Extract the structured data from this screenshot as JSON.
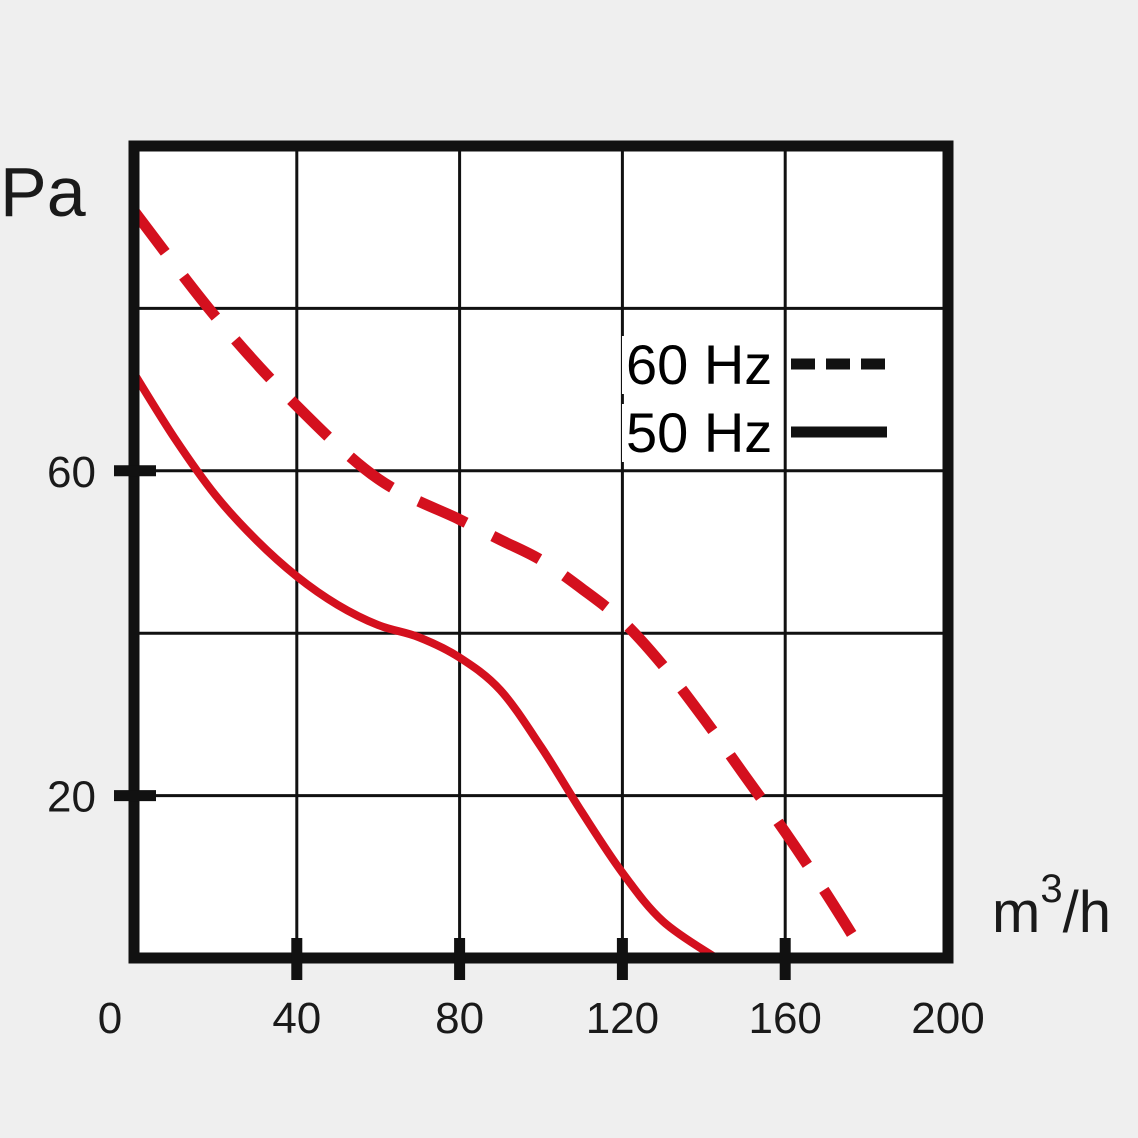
{
  "chart_data": {
    "type": "line",
    "ylabel": "Pa",
    "xlabel_base": "m",
    "xlabel_sup": "3",
    "xlabel_tail": "/h",
    "xlim": [
      0,
      200
    ],
    "ylim": [
      0,
      100
    ],
    "x_ticks": [
      "0",
      "40",
      "80",
      "120",
      "160",
      "200"
    ],
    "x_tick_values": [
      0,
      40,
      80,
      120,
      160,
      200
    ],
    "y_ticks": [
      "60",
      "20"
    ],
    "y_tick_values": [
      60,
      20
    ],
    "grid": true,
    "legend_placement": "right",
    "colors": {
      "curve": "#d4101e",
      "legend_line": "#111111",
      "frame": "#111111",
      "grid": "#111111",
      "background": "#efefef"
    },
    "series": [
      {
        "name": "60 Hz",
        "style": "dashed",
        "x": [
          0,
          20,
          40,
          60,
          80,
          90,
          100,
          110,
          120,
          130,
          140,
          150,
          160,
          170,
          180
        ],
        "y": [
          92,
          79,
          68,
          59,
          54,
          51.5,
          49,
          45.5,
          41.5,
          36,
          29.5,
          22.5,
          15.5,
          8,
          0
        ]
      },
      {
        "name": "50 Hz",
        "style": "solid",
        "x": [
          0,
          10,
          20,
          30,
          40,
          50,
          60,
          70,
          80,
          90,
          100,
          110,
          120,
          130,
          143
        ],
        "y": [
          72,
          64,
          57,
          51.5,
          47,
          43.5,
          41,
          39.5,
          37,
          33,
          26,
          18,
          10.5,
          4.5,
          0
        ]
      }
    ]
  }
}
